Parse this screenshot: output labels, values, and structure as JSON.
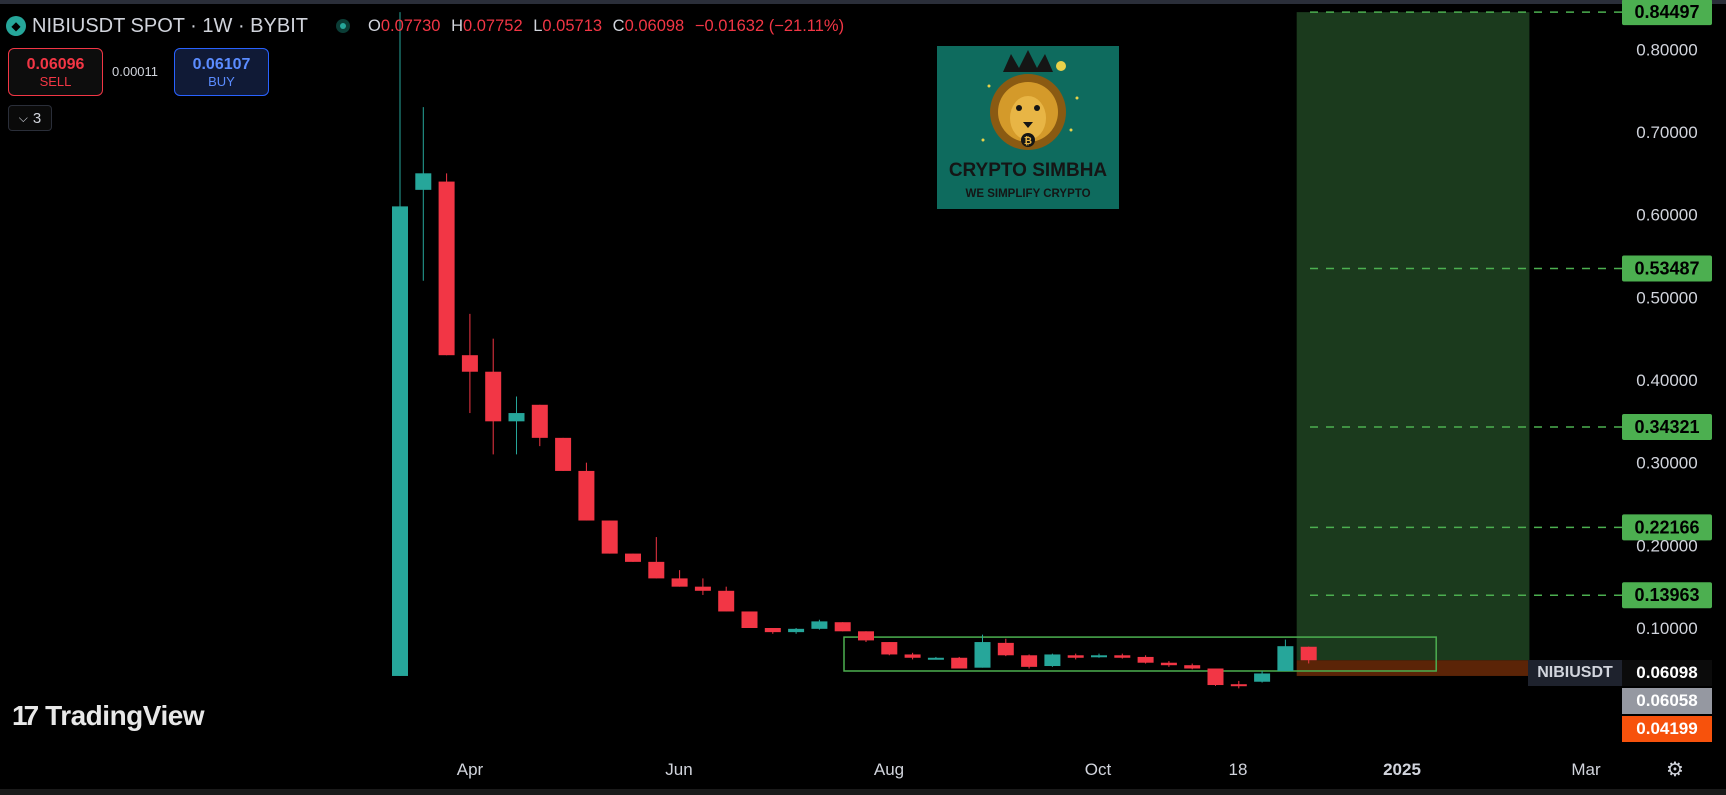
{
  "header": {
    "symbol_title": "NIBIUSDT SPOT · 1W · BYBIT",
    "symbol_icon": "exchange-diamond-icon",
    "live_icon": "market-open-icon",
    "ohlc": {
      "o_key": "O",
      "o": "0.07730",
      "h_key": "H",
      "h": "0.07752",
      "l_key": "L",
      "l": "0.05713",
      "c_key": "C",
      "c": "0.06098",
      "change": "−0.01632 (−21.11%)"
    }
  },
  "trade": {
    "sell_price": "0.06096",
    "sell_label": "SELL",
    "spread": "0.00011",
    "buy_price": "0.06107",
    "buy_label": "BUY"
  },
  "indicators_toggle": "3",
  "watermark": {
    "brand": "CRYPTO SIMBHA",
    "tagline": "WE SIMPLIFY CRYPTO",
    "emblem": "lion-king-logo-icon"
  },
  "tradingview": {
    "brand": "TradingView",
    "mark": "17",
    "icon": "tradingview-logo-icon"
  },
  "price_tags": {
    "symbol": "NIBIUSDT",
    "current": "0.06098",
    "gray": "0.06058",
    "orange": "0.04199"
  },
  "settings_icon": "gear-icon",
  "colors": {
    "up": "#26a69a",
    "down": "#f23645",
    "level": "#4caf50",
    "zone": "#1b3a1d",
    "stop_zone": "#6b2a08",
    "range_box": "#4caf50"
  },
  "chart_data": {
    "type": "candlestick",
    "timeframe": "1W",
    "y_ticks": [
      "0.80000",
      "0.70000",
      "0.60000",
      "0.50000",
      "0.40000",
      "0.30000",
      "0.20000",
      "0.10000"
    ],
    "x_ticks": [
      "Apr",
      "Jun",
      "Aug",
      "Oct",
      "18",
      "2025",
      "Mar"
    ],
    "level_lines": [
      "0.84497",
      "0.53487",
      "0.34321",
      "0.22166",
      "0.13963"
    ],
    "candles": [
      {
        "o": 0.04199,
        "h": 0.84497,
        "l": 0.04199,
        "c": 0.61
      },
      {
        "o": 0.63,
        "h": 0.73,
        "l": 0.52,
        "c": 0.65
      },
      {
        "o": 0.64,
        "h": 0.65,
        "l": 0.43,
        "c": 0.43
      },
      {
        "o": 0.43,
        "h": 0.48,
        "l": 0.36,
        "c": 0.41
      },
      {
        "o": 0.41,
        "h": 0.45,
        "l": 0.31,
        "c": 0.35
      },
      {
        "o": 0.35,
        "h": 0.38,
        "l": 0.31,
        "c": 0.36
      },
      {
        "o": 0.37,
        "h": 0.37,
        "l": 0.32,
        "c": 0.33
      },
      {
        "o": 0.33,
        "h": 0.33,
        "l": 0.29,
        "c": 0.29
      },
      {
        "o": 0.29,
        "h": 0.3,
        "l": 0.23,
        "c": 0.23
      },
      {
        "o": 0.23,
        "h": 0.23,
        "l": 0.19,
        "c": 0.19
      },
      {
        "o": 0.19,
        "h": 0.19,
        "l": 0.18,
        "c": 0.18
      },
      {
        "o": 0.18,
        "h": 0.21,
        "l": 0.16,
        "c": 0.16
      },
      {
        "o": 0.16,
        "h": 0.17,
        "l": 0.15,
        "c": 0.15
      },
      {
        "o": 0.15,
        "h": 0.16,
        "l": 0.14,
        "c": 0.145
      },
      {
        "o": 0.145,
        "h": 0.15,
        "l": 0.12,
        "c": 0.12
      },
      {
        "o": 0.12,
        "h": 0.12,
        "l": 0.1,
        "c": 0.1
      },
      {
        "o": 0.1,
        "h": 0.1,
        "l": 0.093,
        "c": 0.095
      },
      {
        "o": 0.095,
        "h": 0.1,
        "l": 0.093,
        "c": 0.099
      },
      {
        "o": 0.099,
        "h": 0.11,
        "l": 0.098,
        "c": 0.108
      },
      {
        "o": 0.107,
        "h": 0.107,
        "l": 0.096,
        "c": 0.096
      },
      {
        "o": 0.096,
        "h": 0.096,
        "l": 0.083,
        "c": 0.085
      },
      {
        "o": 0.083,
        "h": 0.083,
        "l": 0.067,
        "c": 0.068
      },
      {
        "o": 0.068,
        "h": 0.07,
        "l": 0.062,
        "c": 0.064
      },
      {
        "o": 0.064,
        "h": 0.065,
        "l": 0.063,
        "c": 0.064
      },
      {
        "o": 0.064,
        "h": 0.065,
        "l": 0.051,
        "c": 0.051
      },
      {
        "o": 0.052,
        "h": 0.092,
        "l": 0.052,
        "c": 0.083
      },
      {
        "o": 0.082,
        "h": 0.087,
        "l": 0.066,
        "c": 0.067
      },
      {
        "o": 0.067,
        "h": 0.068,
        "l": 0.051,
        "c": 0.053
      },
      {
        "o": 0.054,
        "h": 0.069,
        "l": 0.053,
        "c": 0.068
      },
      {
        "o": 0.067,
        "h": 0.069,
        "l": 0.062,
        "c": 0.064
      },
      {
        "o": 0.065,
        "h": 0.069,
        "l": 0.064,
        "c": 0.067
      },
      {
        "o": 0.067,
        "h": 0.069,
        "l": 0.063,
        "c": 0.064
      },
      {
        "o": 0.065,
        "h": 0.067,
        "l": 0.057,
        "c": 0.058
      },
      {
        "o": 0.058,
        "h": 0.06,
        "l": 0.053,
        "c": 0.055
      },
      {
        "o": 0.055,
        "h": 0.057,
        "l": 0.05,
        "c": 0.051
      },
      {
        "o": 0.051,
        "h": 0.051,
        "l": 0.03,
        "c": 0.031
      },
      {
        "o": 0.032,
        "h": 0.036,
        "l": 0.027,
        "c": 0.031
      },
      {
        "o": 0.035,
        "h": 0.048,
        "l": 0.034,
        "c": 0.045
      },
      {
        "o": 0.048,
        "h": 0.086,
        "l": 0.048,
        "c": 0.078
      },
      {
        "o": 0.0773,
        "h": 0.07752,
        "l": 0.05713,
        "c": 0.06098
      }
    ],
    "zones": [
      {
        "kind": "target-zone",
        "from_candle": 39,
        "to_candle": 48,
        "low": 0.06098,
        "high": 0.84497,
        "color": "#1b3a1d"
      },
      {
        "kind": "stop-zone",
        "from_candle": 39,
        "to_candle": 48,
        "low": 0.04199,
        "high": 0.06098,
        "color": "#6b2a08"
      },
      {
        "kind": "range-box",
        "from_candle": 20,
        "to_candle": 44,
        "low": 0.048,
        "high": 0.089,
        "color": "#4caf50"
      }
    ]
  }
}
